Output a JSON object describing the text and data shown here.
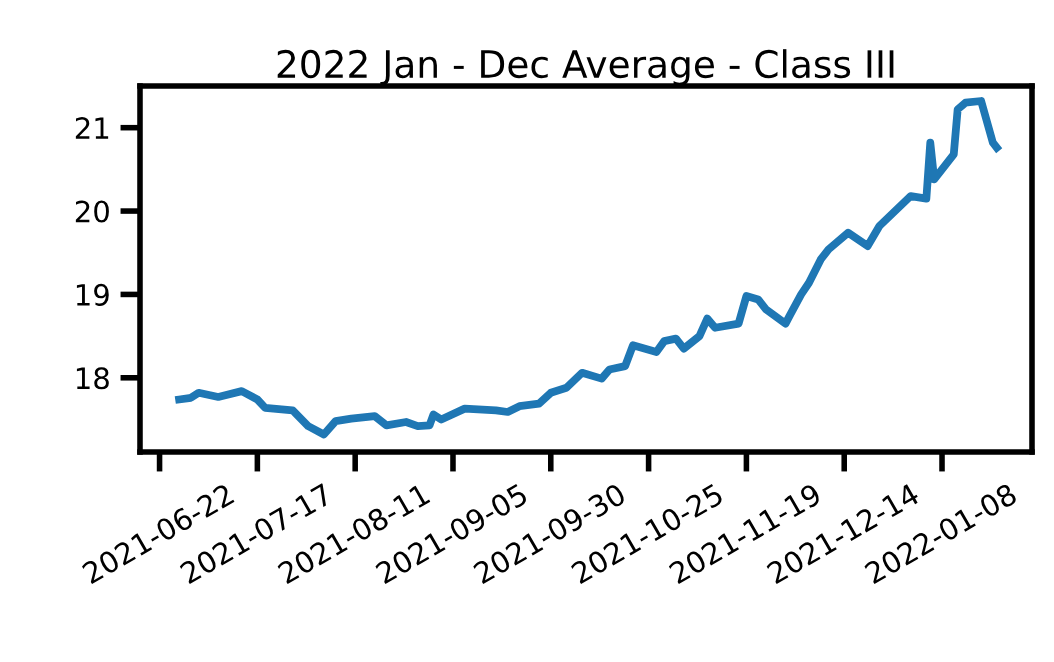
{
  "chart_data": {
    "type": "line",
    "title": "2022 Jan - Dec Average - Class III",
    "x": [
      "2021-06-27",
      "2021-06-30",
      "2021-07-02",
      "2021-07-07",
      "2021-07-13",
      "2021-07-17",
      "2021-07-19",
      "2021-07-26",
      "2021-07-30",
      "2021-08-03",
      "2021-08-06",
      "2021-08-10",
      "2021-08-16",
      "2021-08-19",
      "2021-08-24",
      "2021-08-27",
      "2021-08-30",
      "2021-08-31",
      "2021-09-02",
      "2021-09-08",
      "2021-09-16",
      "2021-09-19",
      "2021-09-22",
      "2021-09-27",
      "2021-09-30",
      "2021-10-04",
      "2021-10-08",
      "2021-10-13",
      "2021-10-15",
      "2021-10-19",
      "2021-10-21",
      "2021-10-27",
      "2021-10-29",
      "2021-11-01",
      "2021-11-03",
      "2021-11-07",
      "2021-11-09",
      "2021-11-11",
      "2021-11-17",
      "2021-11-19",
      "2021-11-22",
      "2021-11-24",
      "2021-11-29",
      "2021-11-30",
      "2021-12-03",
      "2021-12-05",
      "2021-12-08",
      "2021-12-10",
      "2021-12-15",
      "2021-12-20",
      "2021-12-23",
      "2021-12-31",
      "2022-01-04",
      "2022-01-05",
      "2022-01-06",
      "2022-01-11",
      "2022-01-12",
      "2022-01-14",
      "2022-01-18",
      "2022-01-21",
      "2022-01-22"
    ],
    "series": [
      {
        "color": "#1f77b4",
        "values": [
          17.74,
          17.76,
          17.82,
          17.77,
          17.84,
          17.74,
          17.64,
          17.61,
          17.42,
          17.32,
          17.48,
          17.51,
          17.54,
          17.43,
          17.47,
          17.42,
          17.43,
          17.56,
          17.5,
          17.63,
          17.61,
          17.59,
          17.66,
          17.69,
          17.82,
          17.88,
          18.06,
          17.99,
          18.1,
          18.14,
          18.39,
          18.31,
          18.44,
          18.47,
          18.35,
          18.5,
          18.71,
          18.6,
          18.65,
          18.98,
          18.94,
          18.82,
          18.65,
          18.74,
          19.0,
          19.14,
          19.42,
          19.54,
          19.74,
          19.58,
          19.82,
          20.18,
          20.15,
          20.82,
          20.38,
          20.68,
          21.22,
          21.3,
          21.32,
          20.82,
          20.76
        ]
      }
    ],
    "xlim": [
      "2021-06-17",
      "2022-01-31"
    ],
    "xticks": [
      "2021-06-22",
      "2021-07-17",
      "2021-08-11",
      "2021-09-05",
      "2021-09-30",
      "2021-10-25",
      "2021-11-19",
      "2021-12-14",
      "2022-01-08"
    ],
    "ylim": [
      17.11,
      21.5
    ],
    "yticks": [
      18,
      19,
      20,
      21
    ],
    "grid": false,
    "legend": false
  }
}
